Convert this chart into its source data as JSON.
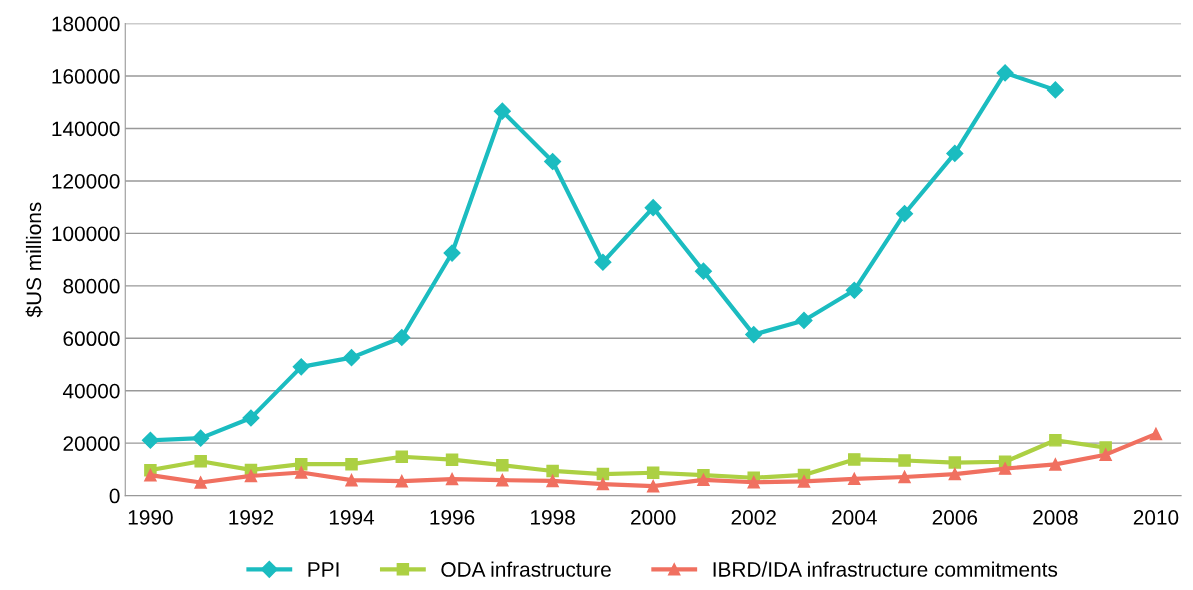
{
  "chart_data": {
    "type": "line",
    "ylabel": "$US millions",
    "x": [
      1990,
      1991,
      1992,
      1993,
      1994,
      1995,
      1996,
      1997,
      1998,
      1999,
      2000,
      2001,
      2002,
      2003,
      2004,
      2005,
      2006,
      2007,
      2008,
      2009,
      2010
    ],
    "series": [
      {
        "name": "PPI",
        "color": "#1bbcc0",
        "marker": "diamond",
        "values": [
          21100,
          21900,
          29600,
          49100,
          52600,
          60300,
          92500,
          146600,
          127400,
          89000,
          109800,
          85600,
          61400,
          66800,
          78300,
          107500,
          130500,
          161200,
          154700,
          null,
          null
        ]
      },
      {
        "name": "ODA infrastructure",
        "color": "#acd043",
        "marker": "square",
        "values": [
          9700,
          13100,
          9800,
          12000,
          12000,
          14800,
          13700,
          11600,
          9400,
          8200,
          8700,
          7800,
          6800,
          7900,
          13800,
          13400,
          12600,
          12900,
          21100,
          18300,
          null
        ]
      },
      {
        "name": "IBRD/IDA infrastructure commitments",
        "color": "#f07060",
        "marker": "triangle",
        "values": [
          7800,
          5000,
          7500,
          8800,
          5900,
          5500,
          6300,
          5900,
          5600,
          4400,
          3600,
          6000,
          5100,
          5400,
          6400,
          7100,
          8200,
          10300,
          11900,
          15600,
          23500
        ]
      }
    ],
    "xlim": [
      1989.5,
      2010.5
    ],
    "xticks": [
      1990,
      1992,
      1994,
      1996,
      1998,
      2000,
      2002,
      2004,
      2006,
      2008,
      2010
    ],
    "ylim": [
      0,
      180000
    ],
    "yticks": [
      0,
      20000,
      40000,
      60000,
      80000,
      100000,
      120000,
      140000,
      160000,
      180000
    ],
    "grid": "y",
    "legend": "bottom"
  }
}
